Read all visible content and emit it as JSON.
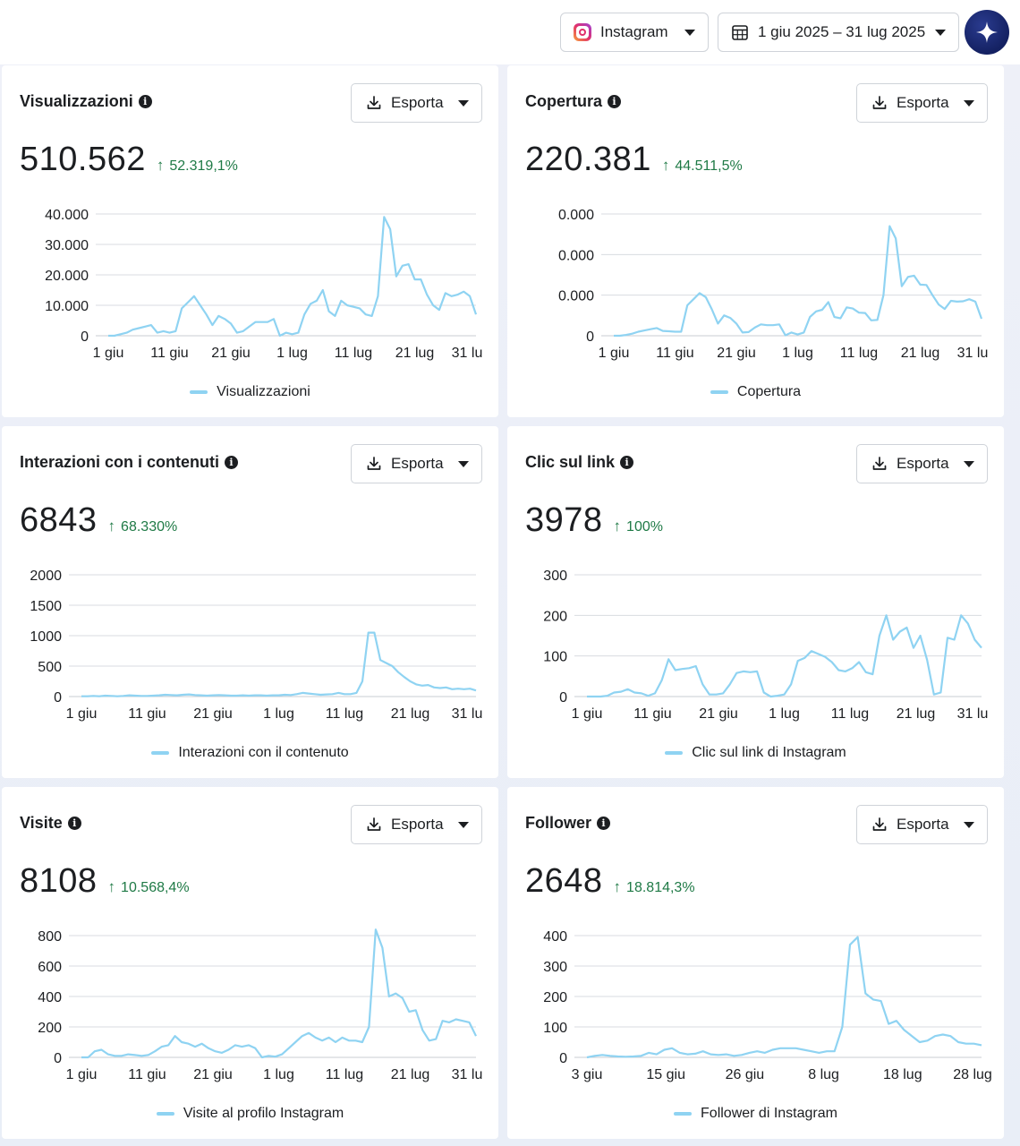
{
  "header": {
    "platform_label": "Instagram",
    "date_range_label": "1 giu 2025 – 31 lug 2025"
  },
  "colors": {
    "series_line": "#8fd3f2",
    "delta_positive": "#1f7a46",
    "grid": "#d8dbe0"
  },
  "cards": [
    {
      "title": "Visualizzazioni",
      "export_label": "Esporta",
      "value": "510.562",
      "delta": "52.319,1%",
      "legend": "Visualizzazioni",
      "chart_data": {
        "type": "line",
        "y_ticks": [
          "40.000",
          "30.000",
          "20.000",
          "10.000",
          "0"
        ],
        "x_ticks": [
          "1 giu",
          "11 giu",
          "21 giu",
          "1 lug",
          "11 lug",
          "21 lug",
          "31 lu"
        ],
        "ylim": [
          0,
          40000
        ],
        "series": [
          {
            "name": "Visualizzazioni",
            "values": [
              0,
              0,
              500,
              1000,
              2000,
              2500,
              3000,
              3500,
              1000,
              1500,
              1000,
              1500,
              9000,
              11000,
              13000,
              10000,
              7000,
              3500,
              6500,
              5500,
              4000,
              1000,
              1500,
              3000,
              4500,
              4500,
              4500,
              5500,
              0,
              1000,
              500,
              1000,
              7000,
              10500,
              11500,
              15000,
              8000,
              6500,
              11500,
              10000,
              9500,
              9000,
              7000,
              6500,
              13000,
              39000,
              35000,
              19500,
              23000,
              23500,
              18500,
              18500,
              13500,
              10000,
              8500,
              14000,
              13000,
              13500,
              14500,
              13000,
              7000
            ]
          }
        ]
      }
    },
    {
      "title": "Copertura",
      "export_label": "Esporta",
      "value": "220.381",
      "delta": "44.511,5%",
      "legend": "Copertura",
      "chart_data": {
        "type": "line",
        "y_ticks": [
          "0.000",
          "0.000",
          "0.000",
          "0"
        ],
        "x_ticks": [
          "1 giu",
          "11 giu",
          "21 giu",
          "1 lug",
          "11 lug",
          "21 lug",
          "31 lu"
        ],
        "ylim": [
          0,
          30000
        ],
        "series": [
          {
            "name": "Copertura",
            "values": [
              0,
              0,
              200,
              500,
              1000,
              1300,
              1600,
              1900,
              1200,
              1100,
              1000,
              1000,
              7500,
              9000,
              10500,
              9500,
              6500,
              3000,
              5000,
              4400,
              3000,
              800,
              900,
              2000,
              2800,
              2600,
              2600,
              2800,
              100,
              800,
              300,
              800,
              4600,
              6000,
              6400,
              8300,
              4600,
              4300,
              7000,
              6700,
              5700,
              5600,
              3800,
              3900,
              10000,
              27000,
              24000,
              12200,
              14500,
              14800,
              12600,
              12500,
              10000,
              7700,
              6600,
              8600,
              8400,
              8500,
              9000,
              8400,
              4200
            ]
          }
        ]
      }
    },
    {
      "title": "Interazioni con i contenuti",
      "export_label": "Esporta",
      "value": "6843",
      "delta": "68.330%",
      "legend": "Interazioni con il contenuto",
      "chart_data": {
        "type": "line",
        "y_ticks": [
          "2000",
          "1500",
          "1000",
          "500",
          "0"
        ],
        "x_ticks": [
          "1 giu",
          "11 giu",
          "21 giu",
          "1 lug",
          "11 lug",
          "21 lug",
          "31 lu"
        ],
        "ylim": [
          0,
          2000
        ],
        "series": [
          {
            "name": "Interazioni con il contenuto",
            "values": [
              5,
              5,
              10,
              5,
              15,
              10,
              5,
              10,
              20,
              15,
              10,
              10,
              15,
              20,
              30,
              25,
              20,
              30,
              35,
              25,
              20,
              15,
              20,
              25,
              20,
              15,
              15,
              20,
              15,
              20,
              20,
              15,
              20,
              20,
              30,
              25,
              40,
              60,
              50,
              40,
              30,
              35,
              40,
              60,
              40,
              40,
              60,
              250,
              1050,
              1050,
              600,
              550,
              500,
              400,
              320,
              250,
              200,
              180,
              190,
              150,
              140,
              150,
              120,
              130,
              120,
              130,
              100
            ]
          }
        ]
      }
    },
    {
      "title": "Clic sul link",
      "export_label": "Esporta",
      "value": "3978",
      "delta": "100%",
      "legend": "Clic sul link di Instagram",
      "chart_data": {
        "type": "line",
        "y_ticks": [
          "300",
          "200",
          "100",
          "0"
        ],
        "x_ticks": [
          "1 giu",
          "11 giu",
          "21 giu",
          "1 lug",
          "11 lug",
          "21 lug",
          "31 lu"
        ],
        "ylim": [
          0,
          300
        ],
        "series": [
          {
            "name": "Clic sul link di Instagram",
            "values": [
              0,
              0,
              0,
              2,
              10,
              12,
              18,
              10,
              8,
              2,
              8,
              40,
              92,
              65,
              68,
              70,
              75,
              30,
              5,
              5,
              8,
              30,
              58,
              62,
              60,
              62,
              10,
              0,
              2,
              5,
              30,
              88,
              95,
              112,
              105,
              98,
              85,
              65,
              62,
              70,
              85,
              60,
              55,
              150,
              200,
              140,
              160,
              170,
              120,
              150,
              90,
              5,
              10,
              145,
              140,
              200,
              180,
              140,
              120
            ]
          }
        ]
      }
    },
    {
      "title": "Visite",
      "export_label": "Esporta",
      "value": "8108",
      "delta": "10.568,4%",
      "legend": "Visite al profilo Instagram",
      "chart_data": {
        "type": "line",
        "y_ticks": [
          "800",
          "600",
          "400",
          "200",
          "0"
        ],
        "x_ticks": [
          "1 giu",
          "11 giu",
          "21 giu",
          "1 lug",
          "11 lug",
          "21 lug",
          "31 lu"
        ],
        "ylim": [
          0,
          800
        ],
        "series": [
          {
            "name": "Visite al profilo Instagram",
            "values": [
              0,
              0,
              40,
              50,
              20,
              10,
              10,
              20,
              15,
              10,
              15,
              40,
              70,
              80,
              140,
              100,
              90,
              70,
              90,
              60,
              40,
              30,
              50,
              80,
              70,
              80,
              60,
              0,
              10,
              5,
              20,
              60,
              100,
              140,
              160,
              130,
              110,
              130,
              100,
              130,
              110,
              110,
              100,
              200,
              840,
              720,
              400,
              420,
              390,
              300,
              310,
              180,
              110,
              120,
              240,
              230,
              250,
              240,
              230,
              140
            ]
          }
        ]
      }
    },
    {
      "title": "Follower",
      "export_label": "Esporta",
      "value": "2648",
      "delta": "18.814,3%",
      "legend": "Follower di Instagram",
      "chart_data": {
        "type": "line",
        "y_ticks": [
          "400",
          "300",
          "200",
          "100",
          "0"
        ],
        "x_ticks": [
          "3 giu",
          "15 giu",
          "26 giu",
          "8 lug",
          "18 lug",
          "28 lug"
        ],
        "ylim": [
          0,
          400
        ],
        "series": [
          {
            "name": "Follower di Instagram",
            "values": [
              0,
              5,
              8,
              5,
              3,
              2,
              3,
              5,
              15,
              10,
              25,
              30,
              15,
              10,
              12,
              20,
              10,
              8,
              10,
              5,
              8,
              15,
              20,
              15,
              25,
              30,
              30,
              30,
              25,
              20,
              15,
              20,
              20,
              100,
              370,
              395,
              210,
              190,
              185,
              110,
              120,
              90,
              70,
              50,
              55,
              70,
              75,
              70,
              50,
              45,
              45,
              40
            ]
          }
        ]
      }
    }
  ]
}
